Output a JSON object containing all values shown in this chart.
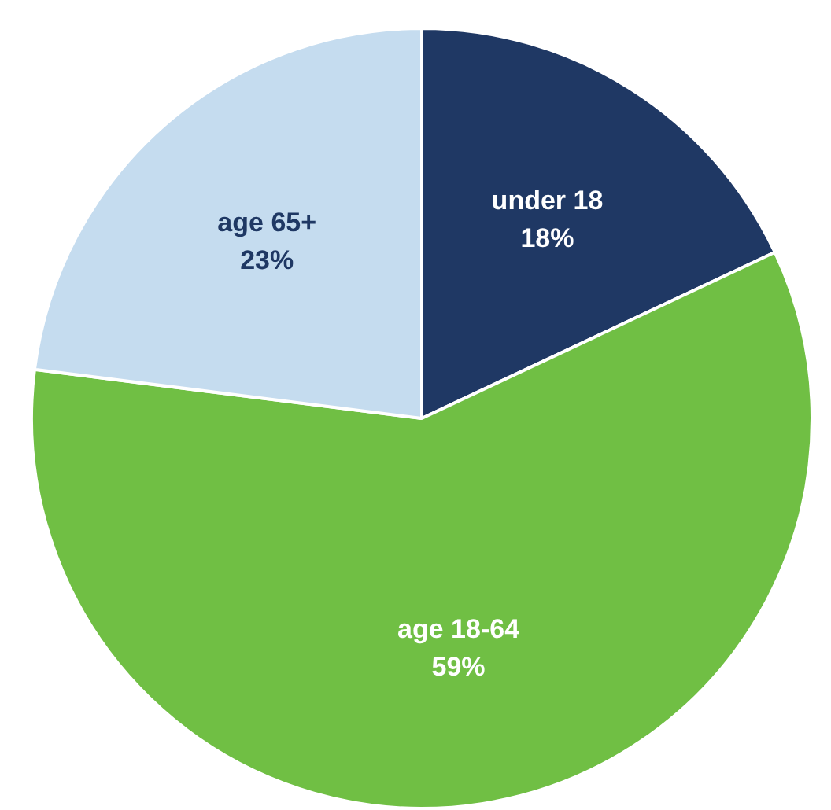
{
  "chart_data": {
    "type": "pie",
    "categories": [
      "under 18",
      "age 18-64",
      "age 65+"
    ],
    "values": [
      18,
      59,
      23
    ],
    "colors": [
      "#1f3864",
      "#70bf44",
      "#c5dcef"
    ],
    "value_labels": [
      "18%",
      "59%",
      "23%"
    ],
    "legend": false
  }
}
